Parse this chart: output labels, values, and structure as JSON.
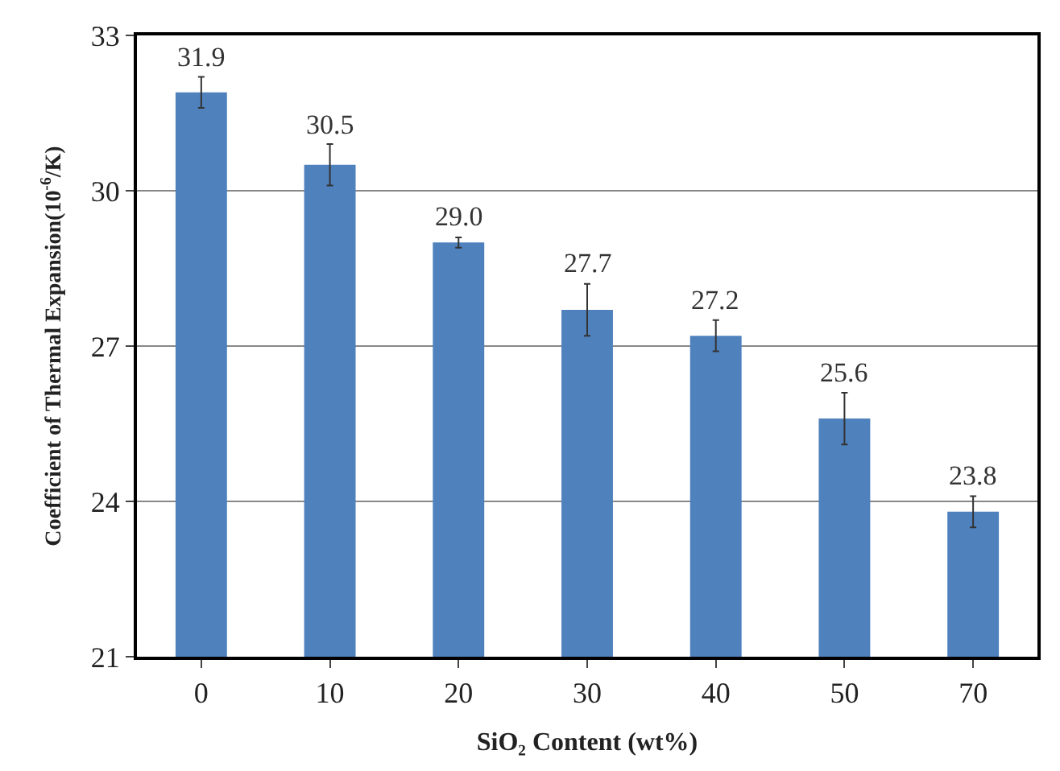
{
  "chart_data": {
    "type": "bar",
    "xlabel": "SiO₂ Content (wt%)",
    "ylabel": "Coefficient of Thermal Expansion(10$^{-6}$/K)",
    "categories": [
      "0",
      "10",
      "20",
      "30",
      "40",
      "50",
      "70"
    ],
    "values": [
      31.9,
      30.5,
      29.0,
      27.7,
      27.2,
      25.6,
      23.8
    ],
    "errors": [
      0.3,
      0.4,
      0.1,
      0.5,
      0.3,
      0.5,
      0.3
    ],
    "color": "#4f81bd",
    "ylim": [
      21,
      33
    ],
    "yticks": [
      21,
      24,
      27,
      30,
      33
    ],
    "grid": "y",
    "value_labels": [
      "31.9",
      "30.5",
      "29.0",
      "27.7",
      "27.2",
      "25.6",
      "23.8"
    ]
  }
}
